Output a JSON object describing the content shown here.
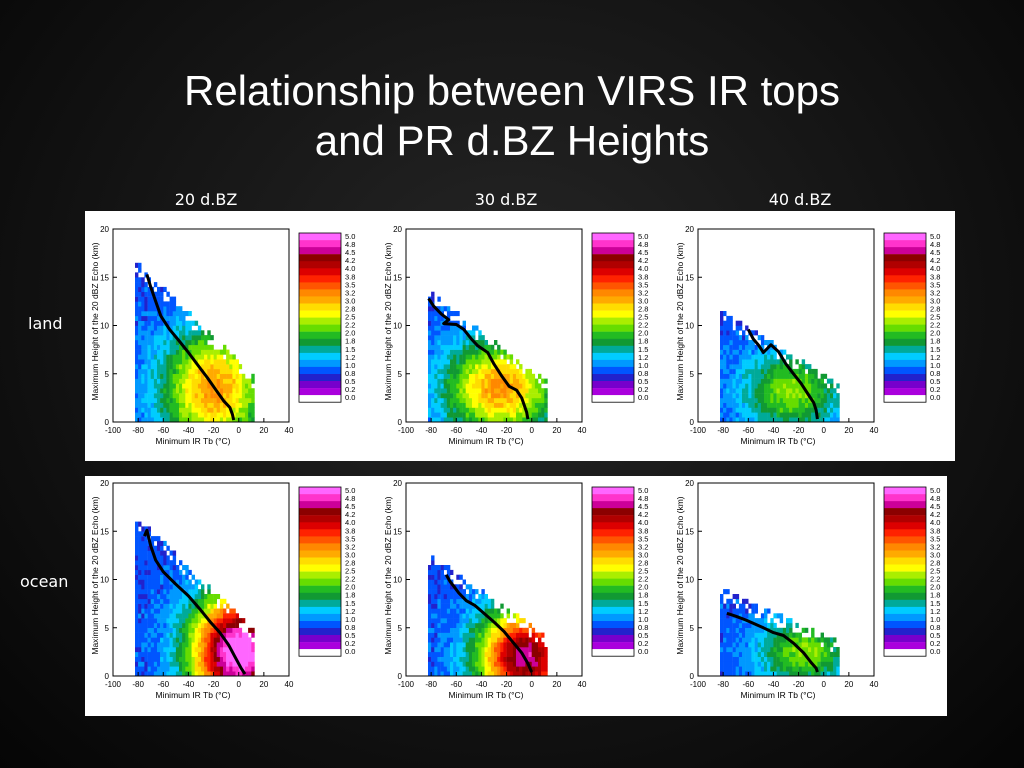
{
  "slide": {
    "title_line1": "Relationship between VIRS IR tops",
    "title_line2": "and PR d.BZ Heights"
  },
  "columns": [
    "20 d.BZ",
    "30 d.BZ",
    "40 d.BZ"
  ],
  "rows": [
    "land",
    "ocean"
  ],
  "chart_data": [
    {
      "type": "heatmap",
      "xlabel": "Minimum IR Tb (°C)",
      "ylabel": "Maximum Height of the 20 dBZ Echo (km)",
      "xlim": [
        -100,
        40
      ],
      "ylim": [
        0,
        20
      ],
      "xticks": [
        "-100",
        "-80",
        "-60",
        "-40",
        "-20",
        "0",
        "20",
        "40"
      ],
      "yticks": [
        "0",
        "5",
        "10",
        "15",
        "20"
      ],
      "colorbar_ticks": [
        "5.0",
        "4.8",
        "4.5",
        "4.2",
        "4.0",
        "3.8",
        "3.5",
        "3.2",
        "3.0",
        "2.8",
        "2.5",
        "2.2",
        "2.0",
        "1.8",
        "1.5",
        "1.2",
        "1.0",
        "0.8",
        "0.5",
        "0.2",
        "0.0"
      ],
      "colorbar_colors": [
        "#ff66ff",
        "#ff33cc",
        "#cc0099",
        "#8b0000",
        "#b00000",
        "#dd0000",
        "#ff2200",
        "#ff5500",
        "#ff8800",
        "#ffaa00",
        "#ffdd00",
        "#ffff00",
        "#aaee00",
        "#66dd00",
        "#22bb22",
        "#119933",
        "#00aa99",
        "#00ccff",
        "#0099ff",
        "#0055ff",
        "#2222cc",
        "#7700cc",
        "#aa00dd",
        "#ffffff"
      ]
    }
  ],
  "panels": [
    {
      "id": "land-20",
      "row": "land",
      "column": "20 d.BZ",
      "curve": [
        [
          -73,
          15.3
        ],
        [
          -70,
          14.0
        ],
        [
          -66,
          12.5
        ],
        [
          -62,
          11.0
        ],
        [
          -55,
          9.6
        ],
        [
          -48,
          8.5
        ],
        [
          -40,
          7.2
        ],
        [
          -32,
          5.8
        ],
        [
          -25,
          4.6
        ],
        [
          -18,
          3.3
        ],
        [
          -12,
          2.2
        ],
        [
          -7,
          1.5
        ],
        [
          -5,
          0.8
        ],
        [
          -4,
          0.2
        ]
      ]
    },
    {
      "id": "land-30",
      "row": "land",
      "column": "30 d.BZ",
      "curve": [
        [
          -82,
          12.8
        ],
        [
          -78,
          12.0
        ],
        [
          -72,
          11.2
        ],
        [
          -66,
          10.6
        ],
        [
          -70,
          10.2
        ],
        [
          -60,
          10.1
        ],
        [
          -54,
          9.6
        ],
        [
          -48,
          8.6
        ],
        [
          -43,
          7.9
        ],
        [
          -35,
          7.2
        ],
        [
          -30,
          6.0
        ],
        [
          -24,
          4.8
        ],
        [
          -18,
          3.7
        ],
        [
          -12,
          3.3
        ],
        [
          -8,
          2.5
        ],
        [
          -4,
          1.0
        ],
        [
          -3,
          0.3
        ]
      ]
    },
    {
      "id": "land-40",
      "row": "land",
      "column": "40 d.BZ",
      "curve": [
        [
          -60,
          9.6
        ],
        [
          -56,
          8.6
        ],
        [
          -52,
          8.0
        ],
        [
          -48,
          7.2
        ],
        [
          -42,
          8.0
        ],
        [
          -36,
          7.3
        ],
        [
          -30,
          6.0
        ],
        [
          -24,
          5.0
        ],
        [
          -18,
          4.0
        ],
        [
          -12,
          2.8
        ],
        [
          -8,
          2.0
        ],
        [
          -6,
          1.2
        ],
        [
          -5,
          0.3
        ]
      ]
    },
    {
      "id": "ocean-20",
      "row": "ocean",
      "column": "20 d.BZ",
      "curve": [
        [
          -75,
          14.5
        ],
        [
          -73,
          15.1
        ],
        [
          -70,
          13.5
        ],
        [
          -66,
          12.0
        ],
        [
          -60,
          10.8
        ],
        [
          -50,
          9.5
        ],
        [
          -40,
          8.3
        ],
        [
          -30,
          6.8
        ],
        [
          -22,
          5.5
        ],
        [
          -15,
          4.5
        ],
        [
          -8,
          3.2
        ],
        [
          -3,
          2.0
        ],
        [
          2,
          0.8
        ],
        [
          5,
          0.2
        ]
      ]
    },
    {
      "id": "ocean-30",
      "row": "ocean",
      "column": "30 d.BZ",
      "curve": [
        [
          -68,
          10.5
        ],
        [
          -65,
          9.8
        ],
        [
          -62,
          9.3
        ],
        [
          -58,
          8.6
        ],
        [
          -52,
          7.8
        ],
        [
          -45,
          7.3
        ],
        [
          -38,
          6.5
        ],
        [
          -30,
          5.6
        ],
        [
          -22,
          4.6
        ],
        [
          -15,
          3.5
        ],
        [
          -8,
          2.4
        ],
        [
          -3,
          1.3
        ],
        [
          0,
          0.4
        ]
      ]
    },
    {
      "id": "ocean-40",
      "row": "ocean",
      "column": "40 d.BZ",
      "curve": [
        [
          -77,
          6.5
        ],
        [
          -70,
          6.2
        ],
        [
          -62,
          5.8
        ],
        [
          -55,
          5.4
        ],
        [
          -48,
          5.0
        ],
        [
          -40,
          4.5
        ],
        [
          -32,
          4.2
        ],
        [
          -24,
          3.4
        ],
        [
          -16,
          2.4
        ],
        [
          -10,
          1.4
        ],
        [
          -6,
          0.8
        ],
        [
          -5,
          0.4
        ]
      ]
    }
  ]
}
